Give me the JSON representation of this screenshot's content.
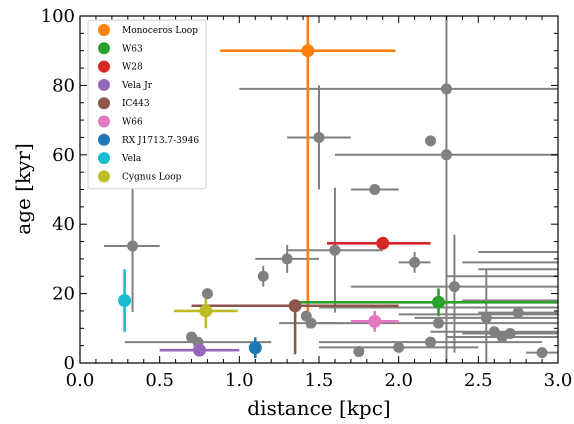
{
  "chart_data": {
    "type": "scatter",
    "title": "",
    "xlabel": "distance [kpc]",
    "ylabel": "age [kyr]",
    "xlim": [
      0.0,
      3.0
    ],
    "ylim": [
      0,
      100
    ],
    "x_ticks": [
      "0.0",
      "0.5",
      "1.0",
      "1.5",
      "2.0",
      "2.5",
      "3.0"
    ],
    "y_ticks": [
      "0",
      "20",
      "40",
      "60",
      "80",
      "100"
    ],
    "grid": false,
    "legend_position": "top-left",
    "highlighted": [
      {
        "name": "Monoceros Loop",
        "color": "#ff7f0e",
        "x": 1.43,
        "y": 90,
        "xerr": [
          0.55,
          0.55
        ],
        "yerr": [
          80,
          10
        ]
      },
      {
        "name": "W63",
        "color": "#2ca02c",
        "x": 2.25,
        "y": 17.5,
        "xerr": [
          0.9,
          0.9
        ],
        "yerr": [
          4,
          4
        ]
      },
      {
        "name": "W28",
        "color": "#d62728",
        "x": 1.9,
        "y": 34.5,
        "xerr": [
          0.35,
          0.3
        ],
        "yerr": [
          0,
          0
        ]
      },
      {
        "name": "Vela Jr",
        "color": "#9467bd",
        "x": 0.75,
        "y": 3.7,
        "xerr": [
          0.25,
          0.25
        ],
        "yerr": [
          1,
          1
        ]
      },
      {
        "name": "IC443",
        "color": "#8c564b",
        "x": 1.35,
        "y": 16.5,
        "xerr": [
          0.65,
          0.65
        ],
        "yerr": [
          14,
          0
        ]
      },
      {
        "name": "W66",
        "color": "#e377c2",
        "x": 1.85,
        "y": 12,
        "xerr": [
          0.15,
          0.15
        ],
        "yerr": [
          3,
          3
        ]
      },
      {
        "name": "RX J1713.7-3946",
        "color": "#1f77b4",
        "x": 1.1,
        "y": 4.4,
        "xerr": [
          0,
          0
        ],
        "yerr": [
          3,
          3
        ]
      },
      {
        "name": "Vela",
        "color": "#17becf",
        "x": 0.28,
        "y": 18,
        "xerr": [
          0,
          0
        ],
        "yerr": [
          9,
          9
        ]
      },
      {
        "name": "Cygnus Loop",
        "color": "#bcbd22",
        "x": 0.79,
        "y": 15,
        "xerr": [
          0.2,
          0.2
        ],
        "yerr": [
          5,
          5
        ]
      }
    ],
    "other_series_color": "#808080",
    "others": [
      {
        "x": 0.33,
        "y": 33.7,
        "xerr": [
          0.18,
          0.17
        ],
        "yerr": [
          19,
          17
        ]
      },
      {
        "x": 0.8,
        "y": 20,
        "xerr": [
          0,
          0
        ],
        "yerr": [
          0,
          0
        ]
      },
      {
        "x": 0.7,
        "y": 7.5,
        "xerr": [
          0,
          0
        ],
        "yerr": [
          0,
          0
        ]
      },
      {
        "x": 0.74,
        "y": 6,
        "xerr": [
          0.46,
          0.46
        ],
        "yerr": [
          0,
          0
        ]
      },
      {
        "x": 1.15,
        "y": 25,
        "xerr": [
          0,
          0
        ],
        "yerr": [
          3,
          3
        ]
      },
      {
        "x": 1.3,
        "y": 30,
        "xerr": [
          0.2,
          0.2
        ],
        "yerr": [
          4,
          4
        ]
      },
      {
        "x": 1.5,
        "y": 65,
        "xerr": [
          0.2,
          0.2
        ],
        "yerr": [
          15,
          15
        ]
      },
      {
        "x": 1.6,
        "y": 32.5,
        "xerr": [
          0.3,
          0.3
        ],
        "yerr": [
          18,
          18
        ]
      },
      {
        "x": 1.42,
        "y": 13.5,
        "xerr": [
          0.0,
          0.0
        ],
        "yerr": [
          0,
          0
        ]
      },
      {
        "x": 1.45,
        "y": 11.5,
        "xerr": [
          0.2,
          0.2
        ],
        "yerr": [
          0,
          0
        ]
      },
      {
        "x": 1.75,
        "y": 3.3,
        "xerr": [
          0,
          0
        ],
        "yerr": [
          0,
          0
        ]
      },
      {
        "x": 1.85,
        "y": 50,
        "xerr": [
          0.15,
          0.15
        ],
        "yerr": [
          0,
          0
        ]
      },
      {
        "x": 2.0,
        "y": 4.5,
        "xerr": [
          0.5,
          0.5
        ],
        "yerr": [
          0,
          0
        ]
      },
      {
        "x": 2.1,
        "y": 29,
        "xerr": [
          0.1,
          0.1
        ],
        "yerr": [
          3,
          3
        ]
      },
      {
        "x": 2.2,
        "y": 64,
        "xerr": [
          0,
          0
        ],
        "yerr": [
          0,
          0
        ]
      },
      {
        "x": 2.2,
        "y": 6,
        "xerr": [
          0.7,
          0.7
        ],
        "yerr": [
          0,
          0
        ]
      },
      {
        "x": 2.25,
        "y": 11.5,
        "xerr": [
          0.75,
          0.75
        ],
        "yerr": [
          0,
          0
        ]
      },
      {
        "x": 2.3,
        "y": 79,
        "xerr": [
          1.3,
          0.7
        ],
        "yerr": [
          79,
          21
        ]
      },
      {
        "x": 2.35,
        "y": 22,
        "xerr": [
          0.65,
          0.65
        ],
        "yerr": [
          19,
          15
        ]
      },
      {
        "x": 2.55,
        "y": 13,
        "xerr": [
          0.45,
          0.45
        ],
        "yerr": [
          13,
          14
        ]
      },
      {
        "x": 2.6,
        "y": 9,
        "xerr": [
          0.4,
          0.4
        ],
        "yerr": [
          0,
          0
        ]
      },
      {
        "x": 2.65,
        "y": 7.5,
        "xerr": [
          0.35,
          0.35
        ],
        "yerr": [
          0,
          0
        ]
      },
      {
        "x": 2.7,
        "y": 8.5,
        "xerr": [
          0.3,
          0.3
        ],
        "yerr": [
          0,
          0
        ]
      },
      {
        "x": 2.75,
        "y": 14.5,
        "xerr": [
          0.25,
          0.25
        ],
        "yerr": [
          0,
          0
        ]
      },
      {
        "x": 2.3,
        "y": 60,
        "xerr": [
          0.7,
          0.7
        ],
        "yerr": [
          0,
          0
        ]
      },
      {
        "x": 2.9,
        "y": 3,
        "xerr": [
          0.1,
          0.1
        ],
        "yerr": [
          0,
          0
        ]
      }
    ],
    "extra_bars": [
      {
        "x1": 2.5,
        "x2": 3.0,
        "y": 32
      },
      {
        "x1": 2.4,
        "x2": 3.0,
        "y": 29
      },
      {
        "x1": 2.5,
        "x2": 3.0,
        "y": 27
      },
      {
        "x1": 2.3,
        "x2": 3.0,
        "y": 25
      },
      {
        "x1": 2.4,
        "x2": 3.0,
        "y": 18
      },
      {
        "x1": 2.2,
        "x2": 3.0,
        "y": 16
      },
      {
        "x1": 1.5,
        "x2": 2.2,
        "y": 16
      },
      {
        "x1": 2.0,
        "x2": 3.0,
        "y": 14
      }
    ]
  }
}
